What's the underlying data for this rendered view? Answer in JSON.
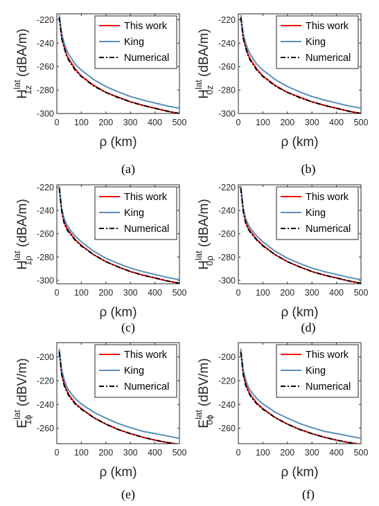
{
  "chart_data": [
    {
      "type": "line",
      "caption": "(a)",
      "xlabel": "ρ (km)",
      "ylabel": {
        "main": "H",
        "sup": "lat",
        "sub": "1z",
        "unit": "(dBA/m)"
      },
      "xlim": [
        0,
        500
      ],
      "ylim": [
        -300,
        -215
      ],
      "xticks": [
        0,
        100,
        200,
        300,
        400,
        500
      ],
      "yticks": [
        -220,
        -240,
        -260,
        -280,
        -300
      ],
      "series": [
        {
          "name": "This work",
          "color": "#ff0000",
          "style": "solid",
          "x": [
            10,
            20,
            30,
            40,
            50,
            75,
            100,
            150,
            200,
            250,
            300,
            350,
            400,
            450,
            500
          ],
          "y": [
            -218,
            -235,
            -243,
            -250,
            -254,
            -262,
            -268,
            -276,
            -282,
            -286,
            -290,
            -293,
            -295.5,
            -298,
            -300
          ]
        },
        {
          "name": "King",
          "color": "#5b8db8",
          "style": "solid",
          "x": [
            10,
            20,
            30,
            40,
            50,
            75,
            100,
            150,
            200,
            250,
            300,
            350,
            400,
            450,
            500
          ],
          "y": [
            -216,
            -232,
            -240,
            -246,
            -250,
            -258,
            -263,
            -271,
            -277,
            -281.5,
            -285.5,
            -288.5,
            -291,
            -293.5,
            -295.5
          ]
        },
        {
          "name": "Numerical",
          "color": "#000000",
          "style": "dashdot",
          "x": [
            10,
            20,
            30,
            40,
            50,
            75,
            100,
            150,
            200,
            250,
            300,
            350,
            400,
            450,
            500
          ],
          "y": [
            -218,
            -236,
            -244,
            -251,
            -255,
            -263,
            -268.5,
            -276.5,
            -282,
            -286.5,
            -290,
            -293,
            -295.5,
            -298,
            -300
          ]
        }
      ]
    },
    {
      "type": "line",
      "caption": "(b)",
      "xlabel": "ρ (km)",
      "ylabel": {
        "main": "H",
        "sup": "lat",
        "sub": "0z",
        "unit": "(dBA/m)"
      },
      "xlim": [
        0,
        500
      ],
      "ylim": [
        -300,
        -215
      ],
      "xticks": [
        0,
        100,
        200,
        300,
        400,
        500
      ],
      "yticks": [
        -220,
        -240,
        -260,
        -280,
        -300
      ],
      "series": [
        {
          "name": "This work",
          "color": "#ff0000",
          "style": "solid",
          "x": [
            10,
            20,
            30,
            40,
            50,
            75,
            100,
            150,
            200,
            250,
            300,
            350,
            400,
            450,
            500
          ],
          "y": [
            -218,
            -235,
            -243,
            -250,
            -254,
            -262,
            -268,
            -276,
            -282,
            -286,
            -290,
            -293,
            -295.5,
            -298,
            -300
          ]
        },
        {
          "name": "King",
          "color": "#5b8db8",
          "style": "solid",
          "x": [
            10,
            20,
            30,
            40,
            50,
            75,
            100,
            150,
            200,
            250,
            300,
            350,
            400,
            450,
            500
          ],
          "y": [
            -216,
            -232,
            -240,
            -246,
            -250,
            -258,
            -263,
            -271,
            -277,
            -281.5,
            -285.5,
            -288.5,
            -291,
            -293.5,
            -295.5
          ]
        },
        {
          "name": "Numerical",
          "color": "#000000",
          "style": "dashdot",
          "x": [
            10,
            20,
            30,
            40,
            50,
            75,
            100,
            150,
            200,
            250,
            300,
            350,
            400,
            450,
            500
          ],
          "y": [
            -218,
            -236,
            -244,
            -251,
            -255,
            -263,
            -268.5,
            -276.5,
            -282,
            -286.5,
            -290,
            -293,
            -295.5,
            -298,
            -300
          ]
        }
      ]
    },
    {
      "type": "line",
      "caption": "(c)",
      "xlabel": "ρ (km)",
      "ylabel": {
        "main": "H",
        "sup": "lat",
        "sub": "1ρ",
        "unit": "(dBA/m)"
      },
      "xlim": [
        0,
        500
      ],
      "ylim": [
        -303,
        -218
      ],
      "xticks": [
        0,
        100,
        200,
        300,
        400,
        500
      ],
      "yticks": [
        -220,
        -240,
        -260,
        -280,
        -300
      ],
      "series": [
        {
          "name": "This work",
          "color": "#ff0000",
          "style": "solid",
          "x": [
            10,
            20,
            30,
            40,
            50,
            75,
            100,
            150,
            200,
            250,
            300,
            350,
            400,
            450,
            500
          ],
          "y": [
            -220,
            -240,
            -250,
            -255,
            -258,
            -265,
            -270,
            -278,
            -284,
            -288.5,
            -292.5,
            -295.5,
            -298,
            -300.5,
            -302.5
          ]
        },
        {
          "name": "King",
          "color": "#5b8db8",
          "style": "solid",
          "x": [
            10,
            20,
            30,
            40,
            50,
            75,
            100,
            150,
            200,
            250,
            300,
            350,
            400,
            450,
            500
          ],
          "y": [
            -219,
            -238,
            -247,
            -252,
            -255.5,
            -262,
            -267,
            -275,
            -281,
            -285.5,
            -289.5,
            -292.5,
            -295,
            -297.5,
            -299.5
          ]
        },
        {
          "name": "Numerical",
          "color": "#000000",
          "style": "dashdot",
          "x": [
            10,
            20,
            30,
            40,
            50,
            75,
            100,
            150,
            200,
            250,
            300,
            350,
            400,
            450,
            500
          ],
          "y": [
            -221,
            -241,
            -251,
            -256,
            -259,
            -265.5,
            -270.5,
            -278,
            -284,
            -288.5,
            -292.5,
            -295.5,
            -298,
            -300.5,
            -302.5
          ]
        }
      ]
    },
    {
      "type": "line",
      "caption": "(d)",
      "xlabel": "ρ (km)",
      "ylabel": {
        "main": "H",
        "sup": "lat",
        "sub": "0ρ",
        "unit": "(dBA/m)"
      },
      "xlim": [
        0,
        500
      ],
      "ylim": [
        -303,
        -218
      ],
      "xticks": [
        0,
        100,
        200,
        300,
        400,
        500
      ],
      "yticks": [
        -220,
        -240,
        -260,
        -280,
        -300
      ],
      "series": [
        {
          "name": "This work",
          "color": "#ff0000",
          "style": "solid",
          "x": [
            10,
            20,
            30,
            40,
            50,
            75,
            100,
            150,
            200,
            250,
            300,
            350,
            400,
            450,
            500
          ],
          "y": [
            -220,
            -240,
            -250,
            -255,
            -258,
            -265,
            -270,
            -278,
            -284,
            -288.5,
            -292.5,
            -295.5,
            -298,
            -300.5,
            -302.5
          ]
        },
        {
          "name": "King",
          "color": "#5b8db8",
          "style": "solid",
          "x": [
            10,
            20,
            30,
            40,
            50,
            75,
            100,
            150,
            200,
            250,
            300,
            350,
            400,
            450,
            500
          ],
          "y": [
            -219,
            -238,
            -247,
            -252,
            -255.5,
            -262,
            -267,
            -275,
            -281,
            -285.5,
            -289.5,
            -292.5,
            -295,
            -297.5,
            -299.5
          ]
        },
        {
          "name": "Numerical",
          "color": "#000000",
          "style": "dashdot",
          "x": [
            10,
            20,
            30,
            40,
            50,
            75,
            100,
            150,
            200,
            250,
            300,
            350,
            400,
            450,
            500
          ],
          "y": [
            -221,
            -241,
            -251,
            -256,
            -259,
            -265.5,
            -270.5,
            -278,
            -284,
            -288.5,
            -292.5,
            -295.5,
            -298,
            -300.5,
            -302.5
          ]
        }
      ]
    },
    {
      "type": "line",
      "caption": "(e)",
      "xlabel": "ρ (km)",
      "ylabel": {
        "main": "E",
        "sup": "lat",
        "sub": "1ϕ",
        "unit": "(dBV/m)"
      },
      "xlim": [
        0,
        500
      ],
      "ylim": [
        -273,
        -188
      ],
      "xticks": [
        0,
        100,
        200,
        300,
        400,
        500
      ],
      "yticks": [
        -200,
        -220,
        -240,
        -260
      ],
      "series": [
        {
          "name": "This work",
          "color": "#ff0000",
          "style": "solid",
          "x": [
            10,
            20,
            30,
            40,
            50,
            75,
            100,
            150,
            200,
            250,
            300,
            350,
            400,
            450,
            500
          ],
          "y": [
            -195,
            -214,
            -223,
            -228,
            -232,
            -239,
            -243.5,
            -251,
            -256.5,
            -261,
            -264.5,
            -267.5,
            -270,
            -272,
            -273.5
          ]
        },
        {
          "name": "King",
          "color": "#5b8db8",
          "style": "solid",
          "x": [
            10,
            20,
            30,
            40,
            50,
            75,
            100,
            150,
            200,
            250,
            300,
            350,
            400,
            450,
            500
          ],
          "y": [
            -193,
            -211,
            -219,
            -225,
            -228.5,
            -235,
            -239.5,
            -246.5,
            -251.5,
            -256,
            -259.5,
            -262.5,
            -264.5,
            -266.5,
            -268.5
          ]
        },
        {
          "name": "Numerical",
          "color": "#000000",
          "style": "dashdot",
          "x": [
            10,
            20,
            30,
            40,
            50,
            75,
            100,
            150,
            200,
            250,
            300,
            350,
            400,
            450,
            500
          ],
          "y": [
            -196,
            -215,
            -224,
            -229,
            -233,
            -239.5,
            -244,
            -251,
            -256.5,
            -261,
            -264.5,
            -267.5,
            -270,
            -272,
            -273.5
          ]
        }
      ]
    },
    {
      "type": "line",
      "caption": "(f)",
      "xlabel": "ρ (km)",
      "ylabel": {
        "main": "E",
        "sup": "lat",
        "sub": "0ϕ",
        "unit": "(dBV/m)"
      },
      "xlim": [
        0,
        500
      ],
      "ylim": [
        -273,
        -188
      ],
      "xticks": [
        0,
        100,
        200,
        300,
        400,
        500
      ],
      "yticks": [
        -200,
        -220,
        -240,
        -260
      ],
      "series": [
        {
          "name": "This work",
          "color": "#ff0000",
          "style": "solid",
          "x": [
            10,
            20,
            30,
            40,
            50,
            75,
            100,
            150,
            200,
            250,
            300,
            350,
            400,
            450,
            500
          ],
          "y": [
            -195,
            -214,
            -223,
            -228,
            -232,
            -239,
            -243.5,
            -251,
            -256.5,
            -261,
            -264.5,
            -267.5,
            -270,
            -272,
            -273.5
          ]
        },
        {
          "name": "King",
          "color": "#5b8db8",
          "style": "solid",
          "x": [
            10,
            20,
            30,
            40,
            50,
            75,
            100,
            150,
            200,
            250,
            300,
            350,
            400,
            450,
            500
          ],
          "y": [
            -193,
            -211,
            -219,
            -225,
            -228.5,
            -235,
            -239.5,
            -246.5,
            -251.5,
            -256,
            -259.5,
            -262.5,
            -264.5,
            -266.5,
            -268.5
          ]
        },
        {
          "name": "Numerical",
          "color": "#000000",
          "style": "dashdot",
          "x": [
            10,
            20,
            30,
            40,
            50,
            75,
            100,
            150,
            200,
            250,
            300,
            350,
            400,
            450,
            500
          ],
          "y": [
            -196,
            -215,
            -224,
            -229,
            -233,
            -239.5,
            -244,
            -251,
            -256.5,
            -261,
            -264.5,
            -267.5,
            -270,
            -272,
            -273.5
          ]
        }
      ]
    }
  ]
}
